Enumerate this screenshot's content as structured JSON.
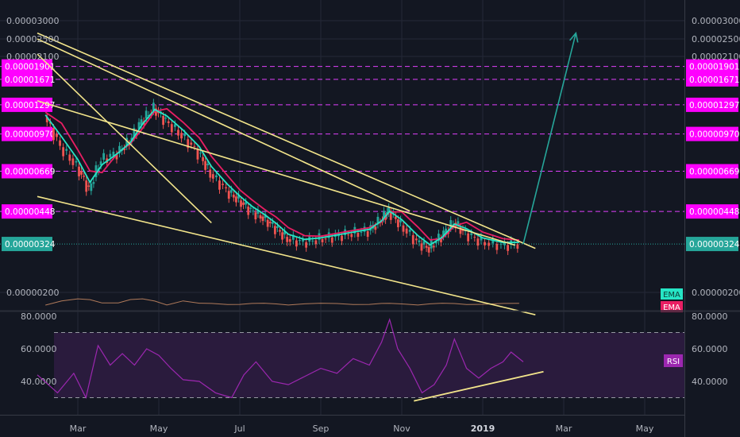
{
  "chart_data": {
    "type": "candlestick",
    "x_axis": {
      "tick_labels": [
        "Mar",
        "May",
        "Jul",
        "Sep",
        "Nov",
        "2019",
        "Mar",
        "May"
      ]
    },
    "price_axis": {
      "scale": "log",
      "tick_labels": [
        "0.00003000",
        "0.00002500",
        "0.00002100",
        "0.00000200"
      ]
    },
    "price_levels": [
      {
        "label": "0.00001901",
        "value": 1.901e-05
      },
      {
        "label": "0.00001671",
        "value": 1.671e-05
      },
      {
        "label": "0.00001297",
        "value": 1.297e-05
      },
      {
        "label": "0.00000970",
        "value": 9.7e-06
      },
      {
        "label": "0.00000669",
        "value": 6.69e-06
      },
      {
        "label": "0.00000448",
        "value": 4.48e-06
      }
    ],
    "last_price": {
      "label": "0.00000324",
      "value": 3.24e-06
    },
    "price_series": [
      {
        "month": 2.2,
        "price": 1.15e-05
      },
      {
        "month": 2.6,
        "price": 8.5e-06
      },
      {
        "month": 3.0,
        "price": 7e-06
      },
      {
        "month": 3.3,
        "price": 5.5e-06
      },
      {
        "month": 3.6,
        "price": 7.5e-06
      },
      {
        "month": 4.0,
        "price": 8e-06
      },
      {
        "month": 4.3,
        "price": 9e-06
      },
      {
        "month": 4.6,
        "price": 1.1e-05
      },
      {
        "month": 4.9,
        "price": 1.25e-05
      },
      {
        "month": 5.2,
        "price": 1.1e-05
      },
      {
        "month": 5.6,
        "price": 9.5e-06
      },
      {
        "month": 6.0,
        "price": 8e-06
      },
      {
        "month": 6.3,
        "price": 6.5e-06
      },
      {
        "month": 6.7,
        "price": 5.5e-06
      },
      {
        "month": 7.0,
        "price": 5e-06
      },
      {
        "month": 7.3,
        "price": 4.5e-06
      },
      {
        "month": 7.6,
        "price": 4.2e-06
      },
      {
        "month": 7.9,
        "price": 3.8e-06
      },
      {
        "month": 8.2,
        "price": 3.4e-06
      },
      {
        "month": 8.6,
        "price": 3.3e-06
      },
      {
        "month": 9.0,
        "price": 3.4e-06
      },
      {
        "month": 9.4,
        "price": 3.5e-06
      },
      {
        "month": 9.8,
        "price": 3.6e-06
      },
      {
        "month": 10.2,
        "price": 3.7e-06
      },
      {
        "month": 10.5,
        "price": 4.1e-06
      },
      {
        "month": 10.7,
        "price": 4.5e-06
      },
      {
        "month": 11.0,
        "price": 3.9e-06
      },
      {
        "month": 11.4,
        "price": 3.3e-06
      },
      {
        "month": 11.7,
        "price": 3.1e-06
      },
      {
        "month": 12.0,
        "price": 3.5e-06
      },
      {
        "month": 12.3,
        "price": 4e-06
      },
      {
        "month": 12.6,
        "price": 3.6e-06
      },
      {
        "month": 13.0,
        "price": 3.3e-06
      },
      {
        "month": 13.5,
        "price": 3.2e-06
      },
      {
        "month": 13.9,
        "price": 3.24e-06
      }
    ],
    "trend_lines": [
      {
        "from": {
          "month": 2.0,
          "price": 2.65e-05
        },
        "to": {
          "month": 14.3,
          "price": 3.1e-06
        }
      },
      {
        "from": {
          "month": 2.0,
          "price": 2.5e-05
        },
        "to": {
          "month": 11.2,
          "price": 4.5e-06
        }
      },
      {
        "from": {
          "month": 2.0,
          "price": 2.15e-05
        },
        "to": {
          "month": 6.3,
          "price": 4e-06
        }
      },
      {
        "from": {
          "month": 2.0,
          "price": 1.35e-05
        },
        "to": {
          "month": 13.8,
          "price": 3.2e-06
        }
      },
      {
        "from": {
          "month": 2.0,
          "price": 5.2e-06
        },
        "to": {
          "month": 14.3,
          "price": 1.6e-06
        }
      }
    ],
    "projection_arrow": {
      "from": {
        "month": 14.0,
        "price": 3.24e-06
      },
      "to": {
        "month": 15.3,
        "price": 2.65e-05
      }
    },
    "legend": [
      "EMA",
      "EMA"
    ],
    "rsi": {
      "label": "RSI",
      "tick_labels": [
        "80.0000",
        "60.0000",
        "40.0000"
      ],
      "levels": [
        70,
        30
      ],
      "values": [
        {
          "month": 2.0,
          "value": 44
        },
        {
          "month": 2.5,
          "value": 33
        },
        {
          "month": 2.9,
          "value": 45
        },
        {
          "month": 3.2,
          "value": 30
        },
        {
          "month": 3.5,
          "value": 62
        },
        {
          "month": 3.8,
          "value": 50
        },
        {
          "month": 4.1,
          "value": 57
        },
        {
          "month": 4.4,
          "value": 50
        },
        {
          "month": 4.7,
          "value": 60
        },
        {
          "month": 5.0,
          "value": 56
        },
        {
          "month": 5.3,
          "value": 48
        },
        {
          "month": 5.6,
          "value": 41
        },
        {
          "month": 6.0,
          "value": 40
        },
        {
          "month": 6.4,
          "value": 33
        },
        {
          "month": 6.8,
          "value": 30
        },
        {
          "month": 7.1,
          "value": 44
        },
        {
          "month": 7.4,
          "value": 52
        },
        {
          "month": 7.8,
          "value": 40
        },
        {
          "month": 8.2,
          "value": 38
        },
        {
          "month": 8.6,
          "value": 43
        },
        {
          "month": 9.0,
          "value": 48
        },
        {
          "month": 9.4,
          "value": 45
        },
        {
          "month": 9.8,
          "value": 54
        },
        {
          "month": 10.2,
          "value": 50
        },
        {
          "month": 10.5,
          "value": 64
        },
        {
          "month": 10.7,
          "value": 78
        },
        {
          "month": 10.9,
          "value": 60
        },
        {
          "month": 11.2,
          "value": 48
        },
        {
          "month": 11.5,
          "value": 33
        },
        {
          "month": 11.8,
          "value": 38
        },
        {
          "month": 12.1,
          "value": 50
        },
        {
          "month": 12.3,
          "value": 66
        },
        {
          "month": 12.6,
          "value": 48
        },
        {
          "month": 12.9,
          "value": 42
        },
        {
          "month": 13.2,
          "value": 48
        },
        {
          "month": 13.5,
          "value": 52
        },
        {
          "month": 13.7,
          "value": 58
        },
        {
          "month": 14.0,
          "value": 52
        }
      ],
      "trend_line": {
        "from": {
          "month": 11.3,
          "value": 28
        },
        "to": {
          "month": 14.5,
          "value": 46
        }
      }
    },
    "colors": {
      "background": "#131722",
      "grid": "#242838",
      "level_line": "#e040fb",
      "level_label_bg": "#ff00ff",
      "last_price_bg": "#26a69a",
      "trend_line": "#f3e58b",
      "projection_arrow": "#26a69a",
      "ema_fast": "#26e5c5",
      "ema_slow": "#e91e63",
      "rsi_line": "#9c27b0",
      "rsi_band": "#2a1b3d",
      "axis_text": "#b2b5be"
    }
  }
}
